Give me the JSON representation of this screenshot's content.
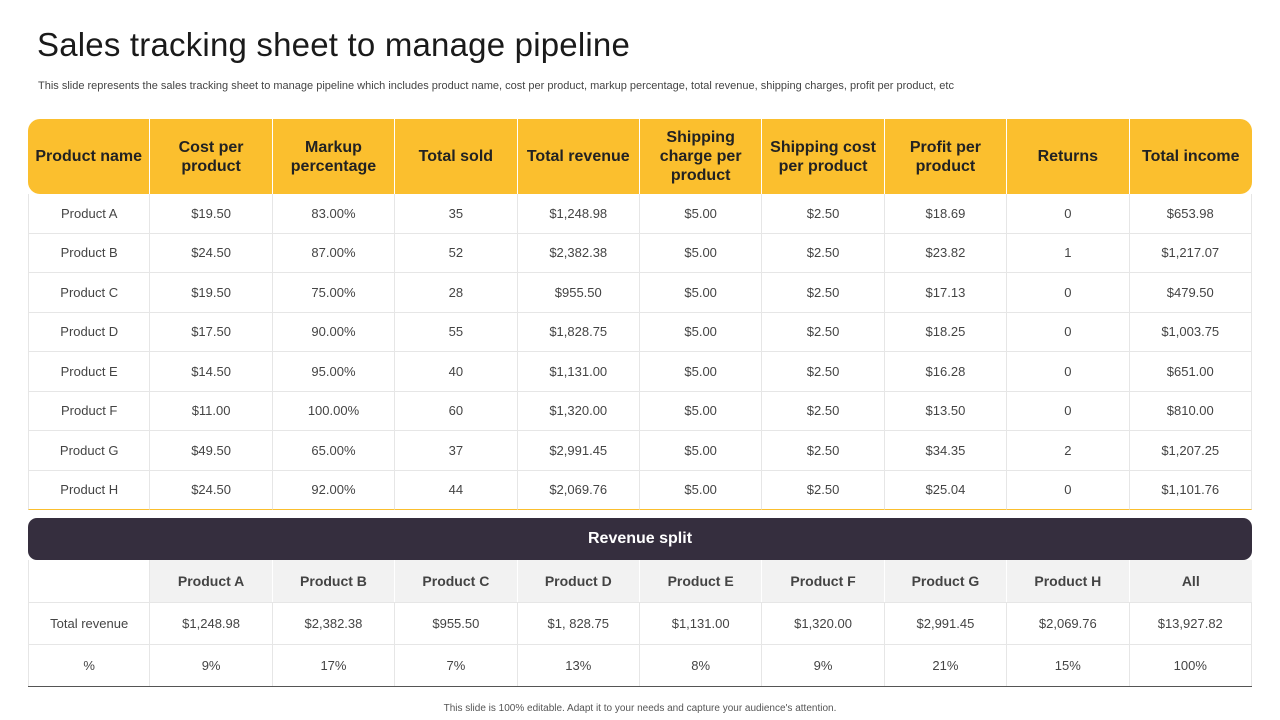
{
  "title": "Sales tracking sheet to manage pipeline",
  "subtitle": "This slide represents the sales tracking sheet to manage pipeline which includes product name, cost per product, markup percentage, total revenue, shipping charges, profit per product, etc",
  "colors": {
    "accent": "#fbbf2e",
    "dark_bar": "#352e3e",
    "header_gray": "#f2f2f2"
  },
  "tracking_table": {
    "headers": [
      "Product name",
      "Cost per product",
      "Markup percentage",
      "Total sold",
      "Total revenue",
      "Shipping charge per product",
      "Shipping cost per product",
      "Profit per product",
      "Returns",
      "Total income"
    ],
    "rows": [
      [
        "Product A",
        "$19.50",
        "83.00%",
        "35",
        "$1,248.98",
        "$5.00",
        "$2.50",
        "$18.69",
        "0",
        "$653.98"
      ],
      [
        "Product B",
        "$24.50",
        "87.00%",
        "52",
        "$2,382.38",
        "$5.00",
        "$2.50",
        "$23.82",
        "1",
        "$1,217.07"
      ],
      [
        "Product C",
        "$19.50",
        "75.00%",
        "28",
        "$955.50",
        "$5.00",
        "$2.50",
        "$17.13",
        "0",
        "$479.50"
      ],
      [
        "Product D",
        "$17.50",
        "90.00%",
        "55",
        "$1,828.75",
        "$5.00",
        "$2.50",
        "$18.25",
        "0",
        "$1,003.75"
      ],
      [
        "Product E",
        "$14.50",
        "95.00%",
        "40",
        "$1,131.00",
        "$5.00",
        "$2.50",
        "$16.28",
        "0",
        "$651.00"
      ],
      [
        "Product F",
        "$11.00",
        "100.00%",
        "60",
        "$1,320.00",
        "$5.00",
        "$2.50",
        "$13.50",
        "0",
        "$810.00"
      ],
      [
        "Product G",
        "$49.50",
        "65.00%",
        "37",
        "$2,991.45",
        "$5.00",
        "$2.50",
        "$34.35",
        "2",
        "$1,207.25"
      ],
      [
        "Product H",
        "$24.50",
        "92.00%",
        "44",
        "$2,069.76",
        "$5.00",
        "$2.50",
        "$25.04",
        "0",
        "$1,101.76"
      ]
    ]
  },
  "revenue_split": {
    "title": "Revenue split",
    "headers": [
      "",
      "Product A",
      "Product B",
      "Product C",
      "Product D",
      "Product E",
      "Product F",
      "Product G",
      "Product H",
      "All"
    ],
    "rows": [
      [
        "Total revenue",
        "$1,248.98",
        "$2,382.38",
        "$955.50",
        "$1, 828.75",
        "$1,131.00",
        "$1,320.00",
        "$2,991.45",
        "$2,069.76",
        "$13,927.82"
      ],
      [
        "%",
        "9%",
        "17%",
        "7%",
        "13%",
        "8%",
        "9%",
        "21%",
        "15%",
        "100%"
      ]
    ]
  },
  "footer": "This slide is 100% editable. Adapt it to your needs and capture your audience's attention."
}
